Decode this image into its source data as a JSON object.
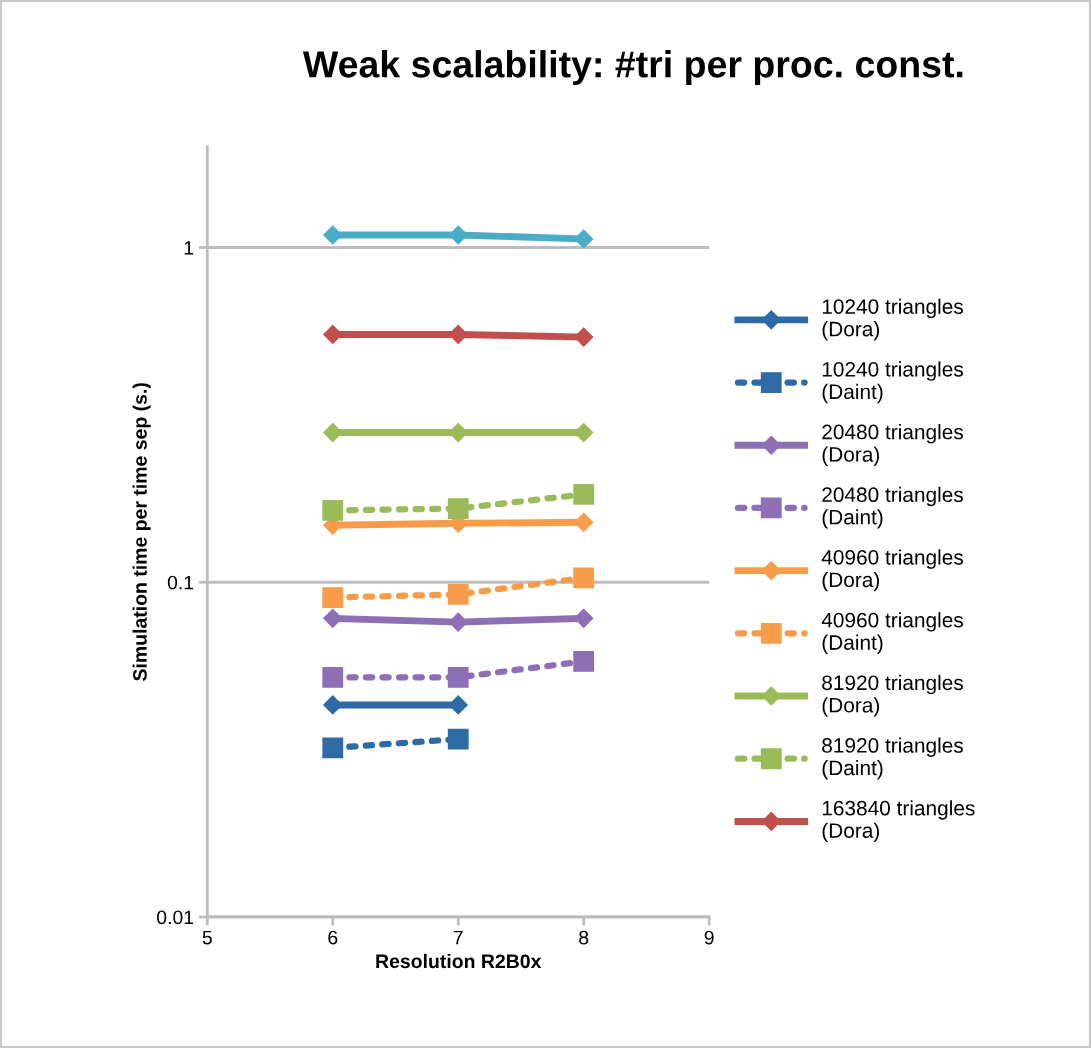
{
  "chart_data": {
    "type": "line",
    "title": "Weak scalability: #tri per proc. const.",
    "xlabel": "Resolution R2B0x",
    "ylabel": "Simulation time per time sep (s.)",
    "x": [
      6,
      7,
      8
    ],
    "xlim": [
      5,
      9
    ],
    "xticks": [
      5,
      6,
      7,
      8,
      9
    ],
    "ylim": [
      0.01,
      2
    ],
    "yticks": [
      0.01,
      0.1,
      1
    ],
    "log": "y",
    "grid": "y",
    "legend": "right",
    "series": [
      {
        "name": "10240 triangles (Dora)",
        "color": "#2e6aa6",
        "marker": "diamond",
        "line_style": "solid",
        "values": [
          0.043,
          0.043,
          null
        ]
      },
      {
        "name": "10240 triangles (Daint)",
        "color": "#2e6aa6",
        "marker": "square",
        "line_style": "dotted",
        "values": [
          0.032,
          0.034,
          null
        ]
      },
      {
        "name": "20480 triangles (Dora)",
        "color": "#8e6fb5",
        "marker": "diamond",
        "line_style": "solid",
        "values": [
          0.078,
          0.076,
          0.078
        ]
      },
      {
        "name": "20480 triangles (Daint)",
        "color": "#8e6fb5",
        "marker": "square",
        "line_style": "dotted",
        "values": [
          0.052,
          0.052,
          0.058
        ]
      },
      {
        "name": "40960 triangles (Dora)",
        "color": "#f89c4a",
        "marker": "diamond",
        "line_style": "solid",
        "values": [
          0.148,
          0.15,
          0.151
        ]
      },
      {
        "name": "40960 triangles (Daint)",
        "color": "#f89c4a",
        "marker": "square",
        "line_style": "dotted",
        "values": [
          0.09,
          0.092,
          0.103
        ]
      },
      {
        "name": "81920 triangles (Dora)",
        "color": "#9bbb59",
        "marker": "diamond",
        "line_style": "solid",
        "values": [
          0.28,
          0.28,
          0.28
        ]
      },
      {
        "name": "81920 triangles (Daint)",
        "color": "#9bbb59",
        "marker": "square",
        "line_style": "dotted",
        "values": [
          0.164,
          0.166,
          0.183
        ]
      },
      {
        "name": "163840 triangles (Dora)",
        "color": "#c0504d",
        "marker": "diamond",
        "line_style": "solid",
        "values": [
          0.55,
          0.55,
          0.54
        ]
      },
      {
        "color": "#4bacc6",
        "marker": "diamond",
        "line_style": "solid",
        "values": [
          1.09,
          1.09,
          1.06
        ]
      }
    ]
  }
}
